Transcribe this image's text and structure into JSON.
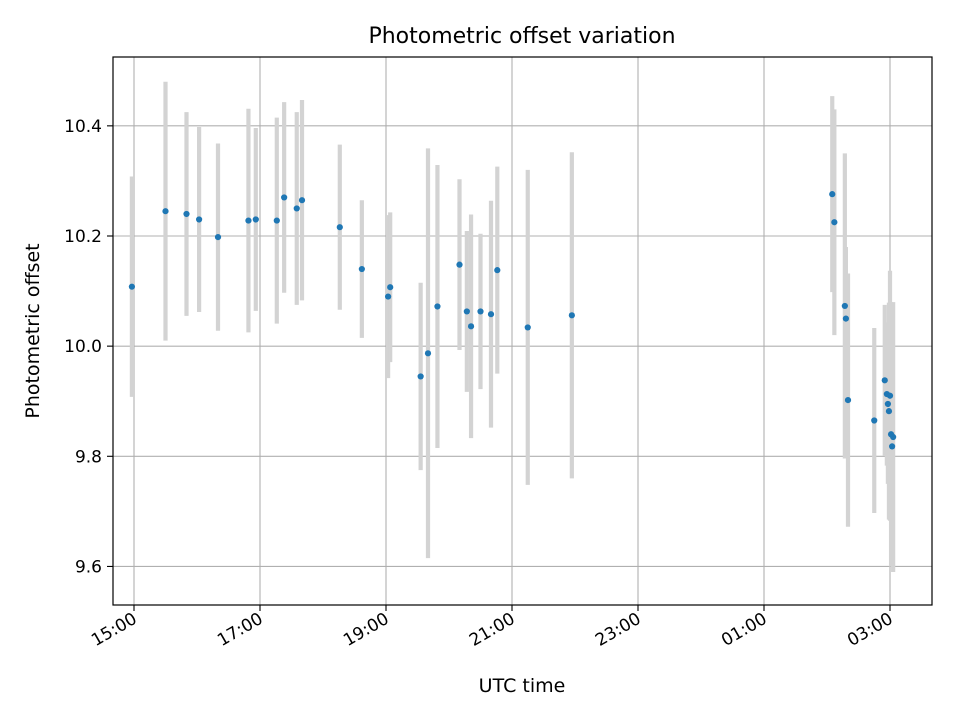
{
  "chart_data": {
    "type": "scatter",
    "title": "Photometric offset variation",
    "xlabel": "UTC time",
    "ylabel": "Photometric offset",
    "x_axis_type": "time",
    "x_range": [
      "14:40",
      "03:40"
    ],
    "ylim": [
      9.53,
      10.525
    ],
    "x_ticks": [
      {
        "time": "15:00",
        "label": "15:00"
      },
      {
        "time": "17:00",
        "label": "17:00"
      },
      {
        "time": "19:00",
        "label": "19:00"
      },
      {
        "time": "21:00",
        "label": "21:00"
      },
      {
        "time": "23:00",
        "label": "23:00"
      },
      {
        "time": "01:00",
        "label": "01:00"
      },
      {
        "time": "03:00",
        "label": "03:00"
      }
    ],
    "y_ticks": [
      {
        "value": 9.6,
        "label": "9.6"
      },
      {
        "value": 9.8,
        "label": "9.8"
      },
      {
        "value": 10.0,
        "label": "10.0"
      },
      {
        "value": 10.2,
        "label": "10.2"
      },
      {
        "value": 10.4,
        "label": "10.4"
      }
    ],
    "grid": true,
    "marker_color": "#1f77b4",
    "errorbar_color": "#d3d3d3",
    "points": [
      {
        "time": "14:58",
        "y": 10.108,
        "err": 0.2
      },
      {
        "time": "15:30",
        "y": 10.245,
        "err": 0.235
      },
      {
        "time": "15:50",
        "y": 10.24,
        "err": 0.185
      },
      {
        "time": "16:02",
        "y": 10.23,
        "err": 0.168
      },
      {
        "time": "16:20",
        "y": 10.198,
        "err": 0.17
      },
      {
        "time": "16:49",
        "y": 10.228,
        "err": 0.203
      },
      {
        "time": "16:56",
        "y": 10.23,
        "err": 0.166
      },
      {
        "time": "17:16",
        "y": 10.228,
        "err": 0.187
      },
      {
        "time": "17:23",
        "y": 10.27,
        "err": 0.173
      },
      {
        "time": "17:35",
        "y": 10.25,
        "err": 0.175
      },
      {
        "time": "17:40",
        "y": 10.265,
        "err": 0.182
      },
      {
        "time": "18:16",
        "y": 10.216,
        "err": 0.15
      },
      {
        "time": "18:37",
        "y": 10.14,
        "err": 0.125
      },
      {
        "time": "19:02",
        "y": 10.09,
        "err": 0.148
      },
      {
        "time": "19:04",
        "y": 10.107,
        "err": 0.136
      },
      {
        "time": "19:33",
        "y": 9.945,
        "err": 0.17
      },
      {
        "time": "19:40",
        "y": 9.987,
        "err": 0.372
      },
      {
        "time": "19:49",
        "y": 10.072,
        "err": 0.257
      },
      {
        "time": "20:10",
        "y": 10.148,
        "err": 0.155
      },
      {
        "time": "20:17",
        "y": 10.063,
        "err": 0.146
      },
      {
        "time": "20:21",
        "y": 10.036,
        "err": 0.203
      },
      {
        "time": "20:30",
        "y": 10.063,
        "err": 0.141
      },
      {
        "time": "20:40",
        "y": 10.058,
        "err": 0.206
      },
      {
        "time": "20:46",
        "y": 10.138,
        "err": 0.188
      },
      {
        "time": "21:15",
        "y": 10.034,
        "err": 0.286
      },
      {
        "time": "21:57",
        "y": 10.056,
        "err": 0.296
      },
      {
        "time": "02:05",
        "y": 10.276,
        "err": 0.178
      },
      {
        "time": "02:07",
        "y": 10.225,
        "err": 0.205
      },
      {
        "time": "02:17",
        "y": 10.073,
        "err": 0.277
      },
      {
        "time": "02:18",
        "y": 10.05,
        "err": 0.13
      },
      {
        "time": "02:20",
        "y": 9.902,
        "err": 0.23
      },
      {
        "time": "02:45",
        "y": 9.865,
        "err": 0.168
      },
      {
        "time": "02:55",
        "y": 9.938,
        "err": 0.137
      },
      {
        "time": "02:57",
        "y": 9.913,
        "err": 0.13
      },
      {
        "time": "02:58",
        "y": 9.895,
        "err": 0.145
      },
      {
        "time": "02:59",
        "y": 9.882,
        "err": 0.197
      },
      {
        "time": "03:00",
        "y": 9.91,
        "err": 0.227
      },
      {
        "time": "03:01",
        "y": 9.84,
        "err": 0.24
      },
      {
        "time": "03:02",
        "y": 9.818,
        "err": 0.215
      },
      {
        "time": "03:03",
        "y": 9.835,
        "err": 0.245
      }
    ]
  }
}
